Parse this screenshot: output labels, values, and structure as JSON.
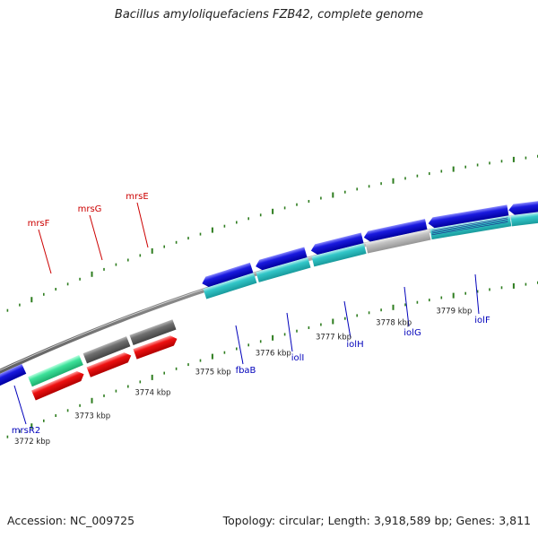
{
  "title": "Bacillus amyloliquefaciens FZB42, complete genome",
  "footer": {
    "accession": "Accession: NC_009725",
    "stats": "Topology: circular; Length: 3,918,589 bp; Genes: 3,811"
  },
  "colors": {
    "red_label": "#cc0000",
    "blue_label": "#0000bb",
    "tick": "#2e7d1f",
    "backbone": "#8c8c8c",
    "blue_gene": "#1a1adf",
    "cyan_gene": "#33c7c9",
    "red_gene": "#ee1111",
    "gray_gene": "#6f6f6f",
    "light_gray_gene": "#c2c2c2",
    "green_gene": "#3de29a"
  },
  "scale_labels": [
    {
      "kbp": 3772,
      "text": "3772 kbp"
    },
    {
      "kbp": 3773,
      "text": "3773 kbp"
    },
    {
      "kbp": 3774,
      "text": "3774 kbp"
    },
    {
      "kbp": 3775,
      "text": "3775 kbp"
    },
    {
      "kbp": 3776,
      "text": "3776 kbp"
    },
    {
      "kbp": 3777,
      "text": "3777 kbp"
    },
    {
      "kbp": 3778,
      "text": "3778 kbp"
    },
    {
      "kbp": 3779,
      "text": "3779 kbp"
    }
  ],
  "gene_labels": [
    {
      "name": "mrsF",
      "color": "red"
    },
    {
      "name": "mrsG",
      "color": "red"
    },
    {
      "name": "mrsE",
      "color": "red"
    },
    {
      "name": "mrsR2",
      "color": "blue"
    },
    {
      "name": "fbaB",
      "color": "blue"
    },
    {
      "name": "iolI",
      "color": "blue"
    },
    {
      "name": "iolH",
      "color": "blue"
    },
    {
      "name": "iolG",
      "color": "blue"
    },
    {
      "name": "iolF",
      "color": "blue"
    }
  ]
}
